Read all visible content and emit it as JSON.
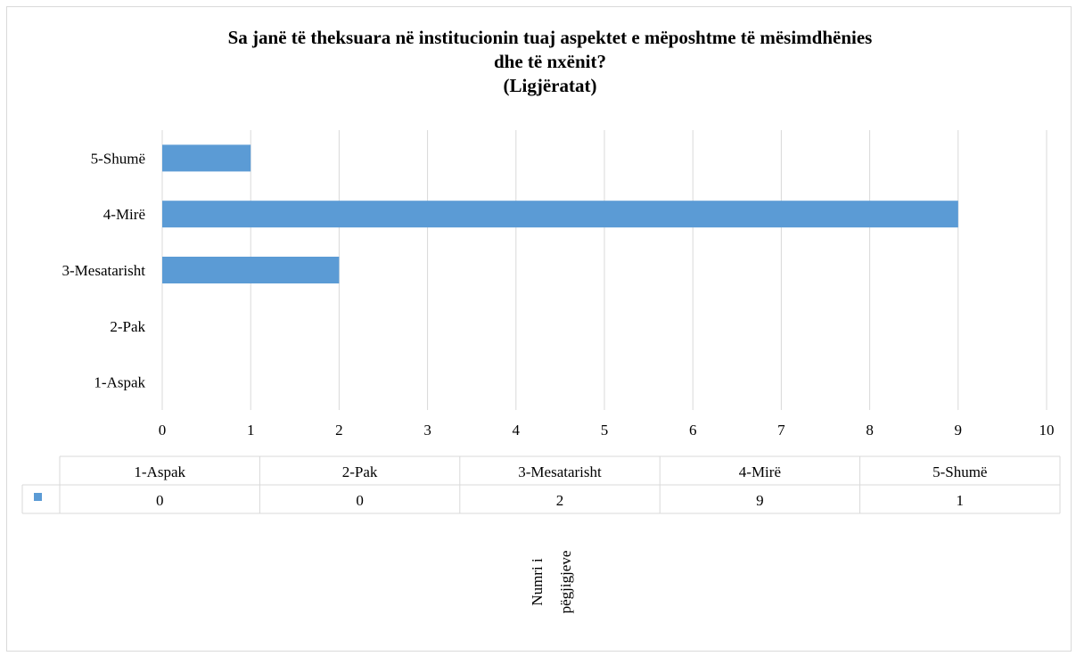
{
  "chart_data": {
    "type": "bar",
    "orientation": "horizontal",
    "title_lines": [
      "Sa janë të theksuara në institucionin tuaj aspektet e mëposhtme të mësimdhënies",
      "dhe të nxënit?",
      "(Ligjëratat)"
    ],
    "categories": [
      "1-Aspak",
      "2-Pak",
      "3-Mesatarisht",
      "4-Mirë",
      "5-Shumë"
    ],
    "series": [
      {
        "name": "",
        "values": [
          0,
          0,
          2,
          9,
          1
        ]
      }
    ],
    "xlim": [
      0,
      10
    ],
    "x_ticks": [
      0,
      1,
      2,
      3,
      4,
      5,
      6,
      7,
      8,
      9,
      10
    ],
    "xlabel": "",
    "ylabel_lines": [
      "Numri i",
      "pëgjigjeve"
    ],
    "grid": "vertical",
    "legend": "none",
    "data_table": true,
    "bar_color": "#5b9bd5",
    "grid_color": "#d9d9d9"
  }
}
